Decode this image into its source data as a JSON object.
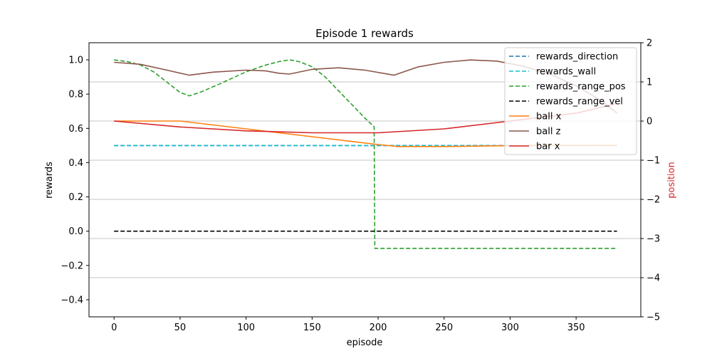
{
  "chart_data": {
    "type": "line",
    "title": "Episode 1 rewards",
    "xlabel": "episode",
    "ylabel_left": "rewards",
    "ylabel_right": "position",
    "xlim": [
      -19,
      399
    ],
    "ylim_left": [
      -0.5,
      1.1
    ],
    "ylim_right": [
      -5,
      2
    ],
    "x_ticks": [
      0,
      50,
      100,
      150,
      200,
      250,
      300,
      350
    ],
    "y_left_ticks": [
      -0.4,
      -0.2,
      0.0,
      0.2,
      0.4,
      0.6,
      0.8,
      1.0
    ],
    "y_left_tick_labels": [
      "−0.4",
      "−0.2",
      "0.0",
      "0.2",
      "0.4",
      "0.6",
      "0.8",
      "1.0"
    ],
    "y_right_ticks": [
      -5,
      -4,
      -3,
      -2,
      -1,
      0,
      1,
      2
    ],
    "y_right_tick_labels": [
      "−5",
      "−4",
      "−3",
      "−2",
      "−1",
      "0",
      "1",
      "2"
    ],
    "grid": "horizontal lines at right-axis ticks",
    "legend_position": "top-right",
    "colors": {
      "rewards_direction": "#1f77b4",
      "rewards_wall": "#17becf",
      "rewards_range_pos": "#2ca02c",
      "rewards_range_vel": "#000000",
      "ball_x": "#ff7f0e",
      "ball_z": "#8c564b",
      "bar_x": "#d62728",
      "right_axis_label": "#d62728"
    },
    "series": [
      {
        "name": "rewards_direction",
        "axis": "left",
        "style": "dashed",
        "color": "#1f77b4",
        "x": [
          0,
          381
        ],
        "y": [
          0.5,
          0.5
        ]
      },
      {
        "name": "rewards_wall",
        "axis": "left",
        "style": "dashed",
        "color": "#17becf",
        "x": [
          0,
          381
        ],
        "y": [
          0.5,
          0.5
        ]
      },
      {
        "name": "rewards_range_pos",
        "axis": "left",
        "style": "dashed",
        "color": "#2ca02c",
        "x": [
          0,
          10,
          20,
          30,
          40,
          50,
          57,
          65,
          80,
          100,
          115,
          125,
          133,
          140,
          150,
          160,
          170,
          180,
          190,
          197,
          197.5,
          200,
          250,
          300,
          381
        ],
        "y": [
          1.0,
          0.99,
          0.97,
          0.93,
          0.87,
          0.81,
          0.79,
          0.81,
          0.86,
          0.93,
          0.97,
          0.99,
          1.0,
          0.99,
          0.96,
          0.9,
          0.82,
          0.74,
          0.66,
          0.61,
          -0.1,
          -0.1,
          -0.1,
          -0.1,
          -0.1
        ]
      },
      {
        "name": "rewards_range_vel",
        "axis": "left",
        "style": "dashed",
        "color": "#000000",
        "x": [
          0,
          381
        ],
        "y": [
          0.0,
          0.0
        ]
      },
      {
        "name": "ball x",
        "axis": "right",
        "style": "solid",
        "color": "#ff7f0e",
        "x": [
          0,
          50,
          100,
          150,
          200,
          215,
          250,
          300,
          350,
          381
        ],
        "y": [
          0.0,
          0.0,
          -0.2,
          -0.4,
          -0.6,
          -0.65,
          -0.65,
          -0.63,
          -0.62,
          -0.62
        ]
      },
      {
        "name": "ball z",
        "axis": "right",
        "style": "solid",
        "color": "#8c564b",
        "x": [
          0,
          20,
          40,
          57,
          75,
          100,
          115,
          125,
          133,
          150,
          170,
          190,
          212,
          230,
          250,
          270,
          290,
          310,
          330,
          350,
          370,
          381
        ],
        "y": [
          1.5,
          1.45,
          1.3,
          1.17,
          1.25,
          1.3,
          1.28,
          1.22,
          1.2,
          1.32,
          1.36,
          1.3,
          1.17,
          1.38,
          1.5,
          1.56,
          1.53,
          1.4,
          1.2,
          0.9,
          0.5,
          0.2
        ]
      },
      {
        "name": "bar x",
        "axis": "right",
        "style": "solid",
        "color": "#d62728",
        "x": [
          0,
          50,
          100,
          150,
          200,
          250,
          300,
          350,
          381
        ],
        "y": [
          0.0,
          -0.15,
          -0.25,
          -0.3,
          -0.3,
          -0.2,
          0.0,
          0.2,
          0.45
        ]
      }
    ]
  }
}
